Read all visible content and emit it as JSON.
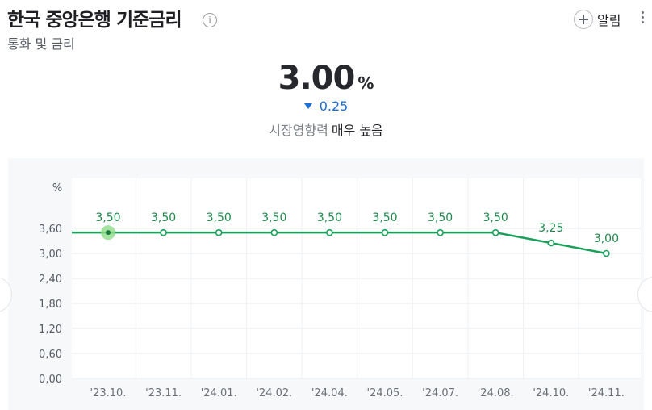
{
  "header": {
    "title": "한국 중앙은행 기준금리",
    "info_icon": "i",
    "subtitle": "통화 및 금리",
    "alarm_label": "알림"
  },
  "summary": {
    "value": "3.00",
    "unit": "%",
    "change": "0.25",
    "change_direction": "down",
    "impact_label": "시장영향력",
    "impact_value": "매우 높음"
  },
  "colors": {
    "line": "#1aa05a",
    "down": "#1a6fd6",
    "panel_bg": "#f7f8fa"
  },
  "chart_data": {
    "type": "line",
    "unit_label": "%",
    "categories": [
      "'23.10.",
      "'23.11.",
      "'24.01.",
      "'24.02.",
      "'24.04.",
      "'24.05.",
      "'24.07.",
      "'24.08.",
      "'24.10.",
      "'24.11."
    ],
    "values": [
      3.5,
      3.5,
      3.5,
      3.5,
      3.5,
      3.5,
      3.5,
      3.5,
      3.25,
      3.0
    ],
    "value_labels": [
      "3,50",
      "3,50",
      "3,50",
      "3,50",
      "3,50",
      "3,50",
      "3,50",
      "3,50",
      "3,25",
      "3,00"
    ],
    "y_ticks": [
      0.0,
      0.6,
      1.2,
      1.8,
      2.4,
      3.0,
      3.6
    ],
    "y_tick_labels": [
      "0,00",
      "0,60",
      "1,20",
      "1,80",
      "2,40",
      "3,00",
      "3,60"
    ],
    "highlighted_index": 0,
    "grid": true
  }
}
